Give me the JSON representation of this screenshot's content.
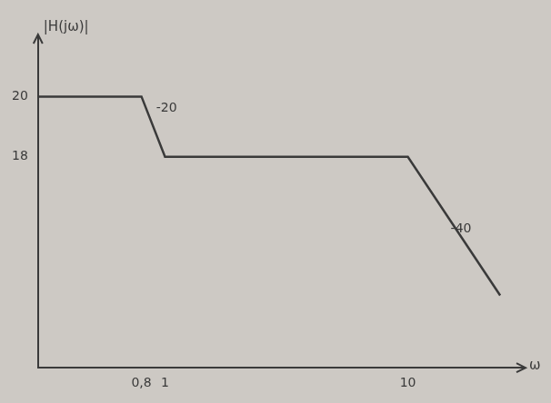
{
  "chart_data": {
    "type": "line",
    "y_label": "|H(jω)|",
    "x_label": "ω",
    "x": [
      0.3,
      0.8,
      1,
      10,
      24
    ],
    "values": [
      20,
      20,
      18,
      18,
      13.4
    ],
    "color": "#3a3a3a",
    "log": "x",
    "xlim": [
      0.3,
      30
    ],
    "xticks": [
      {
        "value": 0.8,
        "label": "0,8"
      },
      1,
      10
    ],
    "ylim": [
      11,
      22
    ],
    "yticks": [
      18,
      20
    ],
    "grid": false,
    "annotations": [
      {
        "text": "-20",
        "x": 0.92,
        "y": 19.6
      },
      {
        "text": "-40",
        "x": 15,
        "y": 15.6
      }
    ]
  }
}
